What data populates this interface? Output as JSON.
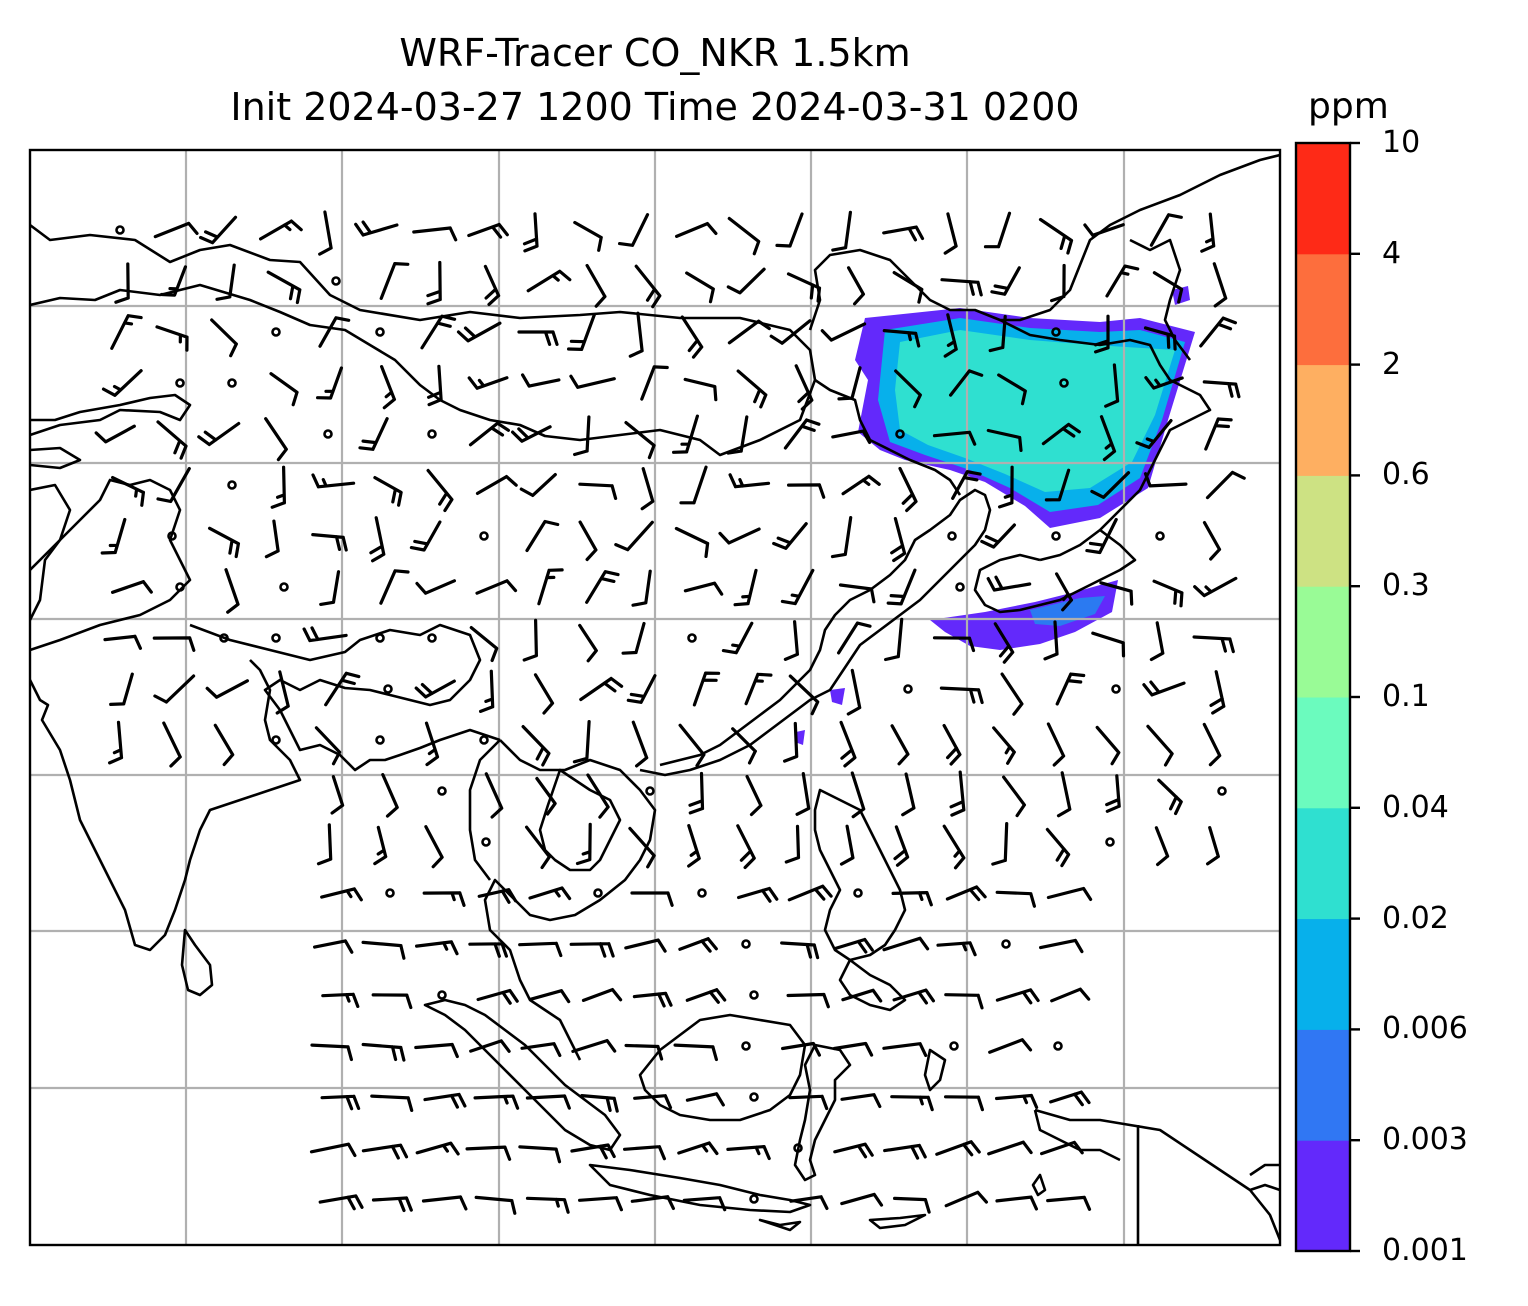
{
  "title": {
    "line1": "WRF-Tracer CO_NKR 1.5km",
    "line2": "Init 2024-03-27 1200 Time 2024-03-31 0200"
  },
  "colorbar": {
    "unit": "ppm",
    "levels": [
      "0.001",
      "0.003",
      "0.006",
      "0.02",
      "0.04",
      "0.1",
      "0.3",
      "0.6",
      "2",
      "4",
      "10"
    ],
    "colors": [
      "#6329fb",
      "#3077f3",
      "#07b0eb",
      "#2fe0d0",
      "#6bfbbe",
      "#99fb96",
      "#cde283",
      "#feaf61",
      "#fd6e3d",
      "#fe2a17"
    ]
  },
  "map": {
    "grid": "on",
    "plume_colors": {
      "outer": "#6329fb",
      "mid": "#07b0eb",
      "inner": "#2fe0d0"
    },
    "coast_color": "#000000",
    "gridline_color": "#b0b0b0"
  }
}
